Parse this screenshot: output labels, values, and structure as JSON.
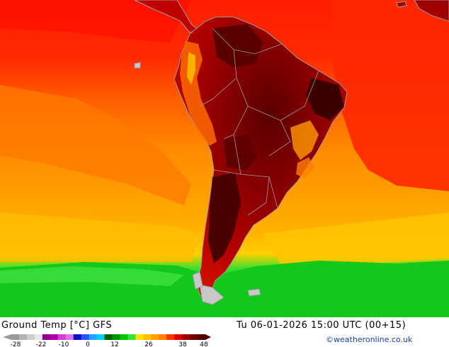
{
  "map": {
    "region": "South America",
    "variable": "Ground Temp"
  },
  "footer": {
    "title": "Ground Temp [°C] GFS",
    "datetime": "Tu 06-01-2026 15:00 UTC (00+15)",
    "credit": "©weatheronline.co.uk"
  },
  "scale": {
    "labels": [
      "-28",
      "-22",
      "-10",
      "0",
      "12",
      "26",
      "38",
      "48"
    ],
    "colors": [
      "#9a9a9a",
      "#b4b4b4",
      "#cdcdcd",
      "#e6e6e6",
      "#8b008b",
      "#b000b0",
      "#d040d0",
      "#e070e0",
      "#1010c0",
      "#3050ff",
      "#20a0ff",
      "#00d0ff",
      "#006400",
      "#009600",
      "#00c800",
      "#38e038",
      "#ffe000",
      "#ffc000",
      "#ffa000",
      "#ff8000",
      "#ff3000",
      "#e00000",
      "#a00000",
      "#700000",
      "#500000"
    ]
  },
  "colors": {
    "ocean_warm": "#ff1e00",
    "ocean_orange": "#ff8c00",
    "ocean_yellow": "#ffb400",
    "ocean_green": "#00c800",
    "land_hot": "#8b0000",
    "land_very_hot": "#4a0000",
    "border": "#9a9a9a",
    "credit": "#1a3fa0"
  }
}
